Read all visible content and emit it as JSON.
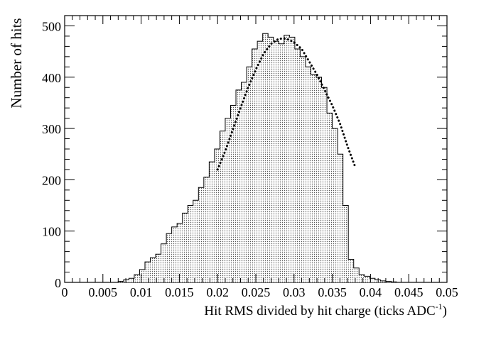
{
  "chart_data": {
    "type": "histogram",
    "xlabel_main": "Hit RMS divided by hit charge (ticks ADC",
    "xlabel_sup": "-1",
    "xlabel_close": ")",
    "ylabel": "Number of hits",
    "xlim": [
      0,
      0.05
    ],
    "ylim": [
      0,
      520
    ],
    "x_ticks": [
      {
        "value": 0,
        "label": "0"
      },
      {
        "value": 0.005,
        "label": "0.005"
      },
      {
        "value": 0.01,
        "label": "0.01"
      },
      {
        "value": 0.015,
        "label": "0.015"
      },
      {
        "value": 0.02,
        "label": "0.02"
      },
      {
        "value": 0.025,
        "label": "0.025"
      },
      {
        "value": 0.03,
        "label": "0.03"
      },
      {
        "value": 0.035,
        "label": "0.035"
      },
      {
        "value": 0.04,
        "label": "0.04"
      },
      {
        "value": 0.045,
        "label": "0.045"
      },
      {
        "value": 0.05,
        "label": "0.05"
      }
    ],
    "y_ticks": [
      {
        "value": 0,
        "label": "0"
      },
      {
        "value": 100,
        "label": "100"
      },
      {
        "value": 200,
        "label": "200"
      },
      {
        "value": 300,
        "label": "300"
      },
      {
        "value": 400,
        "label": "400"
      },
      {
        "value": 500,
        "label": "500"
      }
    ],
    "bin_edges": [
      0.007,
      0.0077,
      0.0084,
      0.0091,
      0.0098,
      0.0105,
      0.0112,
      0.0119,
      0.0126,
      0.0133,
      0.014,
      0.0147,
      0.0154,
      0.0161,
      0.0168,
      0.0175,
      0.0182,
      0.0189,
      0.0196,
      0.0203,
      0.021,
      0.0217,
      0.0224,
      0.0231,
      0.0238,
      0.0245,
      0.0252,
      0.0259,
      0.0266,
      0.0273,
      0.028,
      0.0287,
      0.0294,
      0.0301,
      0.0308,
      0.0315,
      0.0322,
      0.0329,
      0.0336,
      0.0343,
      0.035,
      0.0357,
      0.0364,
      0.0371,
      0.0378,
      0.0385,
      0.0392,
      0.0399,
      0.0406,
      0.0413,
      0.042,
      0.0427,
      0.0434
    ],
    "bin_counts": [
      2,
      5,
      8,
      15,
      25,
      40,
      48,
      55,
      75,
      95,
      108,
      115,
      135,
      150,
      160,
      185,
      205,
      235,
      260,
      295,
      320,
      345,
      375,
      390,
      420,
      455,
      470,
      485,
      478,
      470,
      465,
      482,
      478,
      455,
      440,
      420,
      405,
      400,
      380,
      330,
      300,
      250,
      150,
      45,
      28,
      15,
      12,
      8,
      5,
      3,
      2,
      1
    ],
    "fit_curve": {
      "style": "dotted",
      "x": [
        0.02,
        0.021,
        0.022,
        0.023,
        0.024,
        0.025,
        0.026,
        0.027,
        0.028,
        0.029,
        0.03,
        0.031,
        0.032,
        0.033,
        0.034,
        0.035,
        0.036,
        0.037,
        0.038
      ],
      "y": [
        220,
        256,
        298,
        340,
        380,
        415,
        445,
        465,
        475,
        475,
        468,
        455,
        430,
        405,
        375,
        345,
        310,
        265,
        225
      ]
    }
  }
}
